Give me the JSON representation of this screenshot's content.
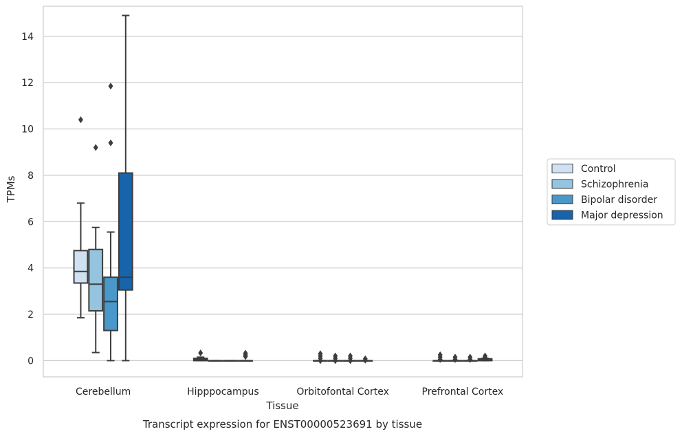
{
  "chart_data": {
    "type": "box",
    "title": "",
    "caption": "Transcript expression for ENST00000523691 by tissue",
    "xlabel": "Tissue",
    "ylabel": "TPMs",
    "ylim": [
      -0.7,
      15.3
    ],
    "yticks": [
      0,
      2,
      4,
      6,
      8,
      10,
      12,
      14
    ],
    "grid": "horizontal",
    "legend_position": "right",
    "categories": [
      "Cerebellum",
      "Hipppocampus",
      "Orbitofontal Cortex",
      "Prefrontal Cortex"
    ],
    "series": [
      {
        "name": "Control",
        "color": "#d0e1f2",
        "boxes": [
          {
            "whisker_low": 1.85,
            "q1": 3.35,
            "median": 3.85,
            "q3": 4.75,
            "whisker_high": 6.8,
            "outliers": [
              10.4
            ]
          },
          {
            "whisker_low": 0,
            "q1": 0,
            "median": 0.05,
            "q3": 0.1,
            "whisker_high": 0.15,
            "outliers": [
              0.33
            ]
          },
          {
            "whisker_low": 0,
            "q1": 0,
            "median": 0,
            "q3": 0,
            "whisker_high": 0,
            "outliers": [
              0.3,
              0.2,
              0.1,
              0.0
            ]
          },
          {
            "whisker_low": 0,
            "q1": 0,
            "median": 0,
            "q3": 0,
            "whisker_high": 0,
            "outliers": [
              0.25,
              0.15,
              0.05
            ]
          }
        ]
      },
      {
        "name": "Schizophrenia",
        "color": "#94c4df",
        "boxes": [
          {
            "whisker_low": 0.35,
            "q1": 2.15,
            "median": 3.3,
            "q3": 4.8,
            "whisker_high": 5.75,
            "outliers": [
              9.2
            ]
          },
          {
            "whisker_low": 0,
            "q1": 0,
            "median": 0,
            "q3": 0,
            "whisker_high": 0,
            "outliers": []
          },
          {
            "whisker_low": 0,
            "q1": 0,
            "median": 0,
            "q3": 0,
            "whisker_high": 0,
            "outliers": [
              0.2,
              0.1,
              0.0
            ]
          },
          {
            "whisker_low": 0,
            "q1": 0,
            "median": 0,
            "q3": 0,
            "whisker_high": 0,
            "outliers": [
              0.15,
              0.05
            ]
          }
        ]
      },
      {
        "name": "Bipolar disorder",
        "color": "#4a98c9",
        "boxes": [
          {
            "whisker_low": 0,
            "q1": 1.3,
            "median": 2.55,
            "q3": 3.6,
            "whisker_high": 5.55,
            "outliers": [
              9.4,
              11.85
            ]
          },
          {
            "whisker_low": 0,
            "q1": 0,
            "median": 0,
            "q3": 0,
            "whisker_high": 0,
            "outliers": []
          },
          {
            "whisker_low": 0,
            "q1": 0,
            "median": 0,
            "q3": 0,
            "whisker_high": 0,
            "outliers": [
              0.2,
              0.1,
              0.0
            ]
          },
          {
            "whisker_low": 0,
            "q1": 0,
            "median": 0,
            "q3": 0,
            "whisker_high": 0,
            "outliers": [
              0.15,
              0.05
            ]
          }
        ]
      },
      {
        "name": "Major depression",
        "color": "#1764ab",
        "boxes": [
          {
            "whisker_low": 0,
            "q1": 3.05,
            "median": 3.6,
            "q3": 8.1,
            "whisker_high": 14.9,
            "outliers": []
          },
          {
            "whisker_low": 0,
            "q1": 0,
            "median": 0,
            "q3": 0,
            "whisker_high": 0,
            "outliers": [
              0.32,
              0.25,
              0.18
            ]
          },
          {
            "whisker_low": 0,
            "q1": 0,
            "median": 0,
            "q3": 0,
            "whisker_high": 0,
            "outliers": [
              0.08,
              0.02
            ]
          },
          {
            "whisker_low": 0,
            "q1": 0,
            "median": 0.02,
            "q3": 0.08,
            "whisker_high": 0.1,
            "outliers": [
              0.2,
              0.15,
              0.1
            ]
          }
        ]
      }
    ]
  }
}
